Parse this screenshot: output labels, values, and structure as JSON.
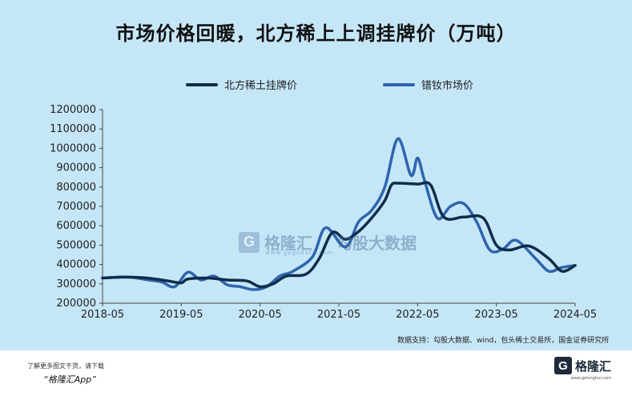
{
  "title": "市场价格回暖，北方稀上上调挂牌价（万吨）",
  "legend": [
    {
      "label": "北方稀土挂牌价",
      "color": "#0f2d4a"
    },
    {
      "label": "镨钕市场价",
      "color": "#2f64ad"
    }
  ],
  "source": "数据支持：勾股大数据、wind，包头稀土交易所，国金证券研究所",
  "watermark": {
    "brand": "格隆汇",
    "sub": "勾股大数据",
    "url": "www.gogudata.com"
  },
  "footer": {
    "line1": "了解更多图文干货，请下载",
    "line2": "“格隆汇App”",
    "logo_mark": "G",
    "logo_text": "格隆汇",
    "logo_url": "www.gelonghui.com"
  },
  "chart_data": {
    "type": "line",
    "title": "市场价格回暖，北方稀上上调挂牌价（万吨）",
    "xlabel": "",
    "ylabel": "",
    "ylim": [
      200000,
      1200000
    ],
    "xlim": [
      "2018-05",
      "2024-05"
    ],
    "y_ticks": [
      "200000",
      "300000",
      "400000",
      "500000",
      "600000",
      "700000",
      "800000",
      "900000",
      "1000000",
      "1100000",
      "1200000"
    ],
    "x_ticks": [
      "2018-05",
      "2019-05",
      "2020-05",
      "2021-05",
      "2022-05",
      "2023-05",
      "2024-05"
    ],
    "legend_position": "top",
    "series": [
      {
        "name": "北方稀土挂牌价",
        "color": "#0f2d4a",
        "points": [
          [
            "2018-05",
            330000
          ],
          [
            "2018-08",
            335000
          ],
          [
            "2018-11",
            332000
          ],
          [
            "2019-01",
            325000
          ],
          [
            "2019-03",
            315000
          ],
          [
            "2019-05",
            305000
          ],
          [
            "2019-06",
            325000
          ],
          [
            "2019-09",
            330000
          ],
          [
            "2019-12",
            320000
          ],
          [
            "2020-03",
            315000
          ],
          [
            "2020-05",
            285000
          ],
          [
            "2020-07",
            300000
          ],
          [
            "2020-09",
            340000
          ],
          [
            "2020-12",
            350000
          ],
          [
            "2021-02",
            430000
          ],
          [
            "2021-04",
            565000
          ],
          [
            "2021-06",
            530000
          ],
          [
            "2021-08",
            570000
          ],
          [
            "2021-10",
            640000
          ],
          [
            "2021-12",
            730000
          ],
          [
            "2022-01",
            810000
          ],
          [
            "2022-02",
            820000
          ],
          [
            "2022-05",
            815000
          ],
          [
            "2022-07",
            810000
          ],
          [
            "2022-09",
            645000
          ],
          [
            "2022-12",
            645000
          ],
          [
            "2023-03",
            640000
          ],
          [
            "2023-05",
            500000
          ],
          [
            "2023-07",
            475000
          ],
          [
            "2023-10",
            495000
          ],
          [
            "2024-01",
            430000
          ],
          [
            "2024-03",
            365000
          ],
          [
            "2024-05",
            395000
          ]
        ]
      },
      {
        "name": "镨钕市场价",
        "color": "#2f64ad",
        "points": [
          [
            "2018-05",
            330000
          ],
          [
            "2018-09",
            335000
          ],
          [
            "2018-12",
            320000
          ],
          [
            "2019-02",
            310000
          ],
          [
            "2019-04",
            285000
          ],
          [
            "2019-06",
            360000
          ],
          [
            "2019-08",
            320000
          ],
          [
            "2019-10",
            340000
          ],
          [
            "2019-12",
            295000
          ],
          [
            "2020-02",
            285000
          ],
          [
            "2020-04",
            270000
          ],
          [
            "2020-06",
            285000
          ],
          [
            "2020-08",
            340000
          ],
          [
            "2020-10",
            365000
          ],
          [
            "2021-01",
            440000
          ],
          [
            "2021-03",
            590000
          ],
          [
            "2021-06",
            490000
          ],
          [
            "2021-08",
            620000
          ],
          [
            "2021-10",
            680000
          ],
          [
            "2021-12",
            800000
          ],
          [
            "2022-02",
            1050000
          ],
          [
            "2022-04",
            860000
          ],
          [
            "2022-05",
            950000
          ],
          [
            "2022-06",
            840000
          ],
          [
            "2022-08",
            640000
          ],
          [
            "2022-10",
            700000
          ],
          [
            "2022-12",
            715000
          ],
          [
            "2023-02",
            620000
          ],
          [
            "2023-04",
            475000
          ],
          [
            "2023-06",
            480000
          ],
          [
            "2023-08",
            525000
          ],
          [
            "2023-11",
            430000
          ],
          [
            "2024-01",
            365000
          ],
          [
            "2024-03",
            385000
          ],
          [
            "2024-05",
            395000
          ]
        ]
      }
    ]
  }
}
